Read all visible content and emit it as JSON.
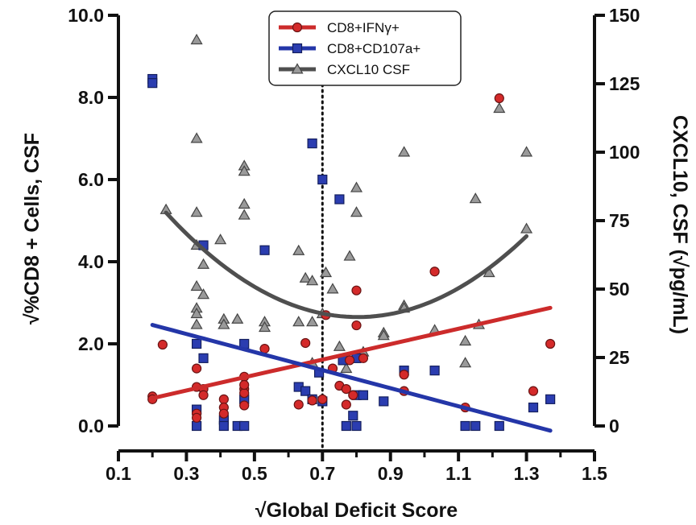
{
  "chart_data": {
    "type": "scatter",
    "xlabel": "√Global Deficit Score",
    "ylabel_left": "√%CD8 + Cells, CSF",
    "ylabel_right": "CXCL10, CSF (√pg/mL)",
    "xlim": [
      0.1,
      1.5
    ],
    "ylim_left": [
      0,
      10
    ],
    "ylim_right": [
      0,
      150
    ],
    "x_ticks": [
      "0.1",
      "0.3",
      "0.5",
      "0.7",
      "0.9",
      "1.1",
      "1.3",
      "1.5"
    ],
    "y_left_ticks": [
      "0.0",
      "2.0",
      "4.0",
      "6.0",
      "8.0",
      "10.0"
    ],
    "y_right_ticks": [
      "0",
      "25",
      "50",
      "75",
      "100",
      "125",
      "150"
    ],
    "threshold_x": 0.7,
    "legend_position": "top-center",
    "series": [
      {
        "name": "CD8+IFNγ+",
        "axis": "left",
        "marker": "circle",
        "color": "#d42a2a",
        "points": [
          [
            0.2,
            0.72
          ],
          [
            0.2,
            0.65
          ],
          [
            0.23,
            1.98
          ],
          [
            0.33,
            0.95
          ],
          [
            0.33,
            0.3
          ],
          [
            0.33,
            0.2
          ],
          [
            0.33,
            1.4
          ],
          [
            0.35,
            0.9
          ],
          [
            0.35,
            0.75
          ],
          [
            0.41,
            0.65
          ],
          [
            0.41,
            0.45
          ],
          [
            0.41,
            0.3
          ],
          [
            0.47,
            0.9
          ],
          [
            0.47,
            0.8
          ],
          [
            0.47,
            1.2
          ],
          [
            0.47,
            1.0
          ],
          [
            0.47,
            0.5
          ],
          [
            0.53,
            1.88
          ],
          [
            0.63,
            0.52
          ],
          [
            0.65,
            2.02
          ],
          [
            0.67,
            0.62
          ],
          [
            0.7,
            0.65
          ],
          [
            0.71,
            2.7
          ],
          [
            0.73,
            1.4
          ],
          [
            0.75,
            0.98
          ],
          [
            0.77,
            0.9
          ],
          [
            0.77,
            0.52
          ],
          [
            0.78,
            1.6
          ],
          [
            0.79,
            0.75
          ],
          [
            0.8,
            3.3
          ],
          [
            0.8,
            2.45
          ],
          [
            0.82,
            1.65
          ],
          [
            0.94,
            1.25
          ],
          [
            0.94,
            0.85
          ],
          [
            1.03,
            3.76
          ],
          [
            1.12,
            0.45
          ],
          [
            1.22,
            7.98
          ],
          [
            1.32,
            0.85
          ],
          [
            1.37,
            2.0
          ]
        ]
      },
      {
        "name": "CD8+CD107a+",
        "axis": "left",
        "marker": "square",
        "color": "#2b3db0",
        "points": [
          [
            0.2,
            8.45
          ],
          [
            0.2,
            8.35
          ],
          [
            0.33,
            2.0
          ],
          [
            0.33,
            0.4
          ],
          [
            0.33,
            0.0
          ],
          [
            0.35,
            1.65
          ],
          [
            0.35,
            4.4
          ],
          [
            0.41,
            0.15
          ],
          [
            0.41,
            0.0
          ],
          [
            0.45,
            0.0
          ],
          [
            0.47,
            2.0
          ],
          [
            0.47,
            0.65
          ],
          [
            0.47,
            0.0
          ],
          [
            0.53,
            4.28
          ],
          [
            0.63,
            0.95
          ],
          [
            0.65,
            0.85
          ],
          [
            0.67,
            6.88
          ],
          [
            0.67,
            0.65
          ],
          [
            0.69,
            1.3
          ],
          [
            0.7,
            6.0
          ],
          [
            0.7,
            0.6
          ],
          [
            0.75,
            5.52
          ],
          [
            0.76,
            1.6
          ],
          [
            0.77,
            0.0
          ],
          [
            0.79,
            0.25
          ],
          [
            0.8,
            0.75
          ],
          [
            0.8,
            0.0
          ],
          [
            0.8,
            1.65
          ],
          [
            0.82,
            0.75
          ],
          [
            0.88,
            0.6
          ],
          [
            0.94,
            1.35
          ],
          [
            1.03,
            1.35
          ],
          [
            1.12,
            0.0
          ],
          [
            1.15,
            0.0
          ],
          [
            1.22,
            0.0
          ],
          [
            1.32,
            0.45
          ],
          [
            1.37,
            0.65
          ]
        ]
      },
      {
        "name": "CXCL10 CSF",
        "axis": "right",
        "marker": "triangle",
        "color": "#9a9a9a",
        "points": [
          [
            0.24,
            79
          ],
          [
            0.33,
            141
          ],
          [
            0.33,
            105
          ],
          [
            0.33,
            78
          ],
          [
            0.33,
            66
          ],
          [
            0.33,
            51
          ],
          [
            0.33,
            43
          ],
          [
            0.33,
            41
          ],
          [
            0.33,
            37
          ],
          [
            0.35,
            59
          ],
          [
            0.35,
            48
          ],
          [
            0.4,
            68
          ],
          [
            0.41,
            39
          ],
          [
            0.41,
            37
          ],
          [
            0.45,
            39
          ],
          [
            0.47,
            95
          ],
          [
            0.47,
            93
          ],
          [
            0.47,
            81
          ],
          [
            0.47,
            77
          ],
          [
            0.53,
            38
          ],
          [
            0.53,
            36
          ],
          [
            0.63,
            64
          ],
          [
            0.63,
            38
          ],
          [
            0.65,
            54
          ],
          [
            0.67,
            53
          ],
          [
            0.67,
            38
          ],
          [
            0.67,
            23
          ],
          [
            0.7,
            41
          ],
          [
            0.71,
            56
          ],
          [
            0.73,
            50
          ],
          [
            0.75,
            29
          ],
          [
            0.77,
            21
          ],
          [
            0.78,
            62
          ],
          [
            0.8,
            87
          ],
          [
            0.8,
            78
          ],
          [
            0.82,
            27
          ],
          [
            0.88,
            34
          ],
          [
            0.88,
            33
          ],
          [
            0.94,
            100
          ],
          [
            0.94,
            44
          ],
          [
            0.94,
            43
          ],
          [
            1.03,
            35
          ],
          [
            1.12,
            31
          ],
          [
            1.12,
            23
          ],
          [
            1.15,
            83
          ],
          [
            1.16,
            37
          ],
          [
            1.19,
            56
          ],
          [
            1.22,
            116
          ],
          [
            1.3,
            100
          ],
          [
            1.3,
            72
          ]
        ]
      }
    ],
    "fit_lines": [
      {
        "series": "CD8+IFNγ+",
        "axis": "left",
        "kind": "linear",
        "color": "#cc2b2b",
        "x_range": [
          0.2,
          1.37
        ],
        "coef": [
          0.3,
          1.88
        ]
      },
      {
        "series": "CD8+CD107a+",
        "axis": "left",
        "kind": "linear",
        "color": "#2436a8",
        "x_range": [
          0.2,
          1.37
        ],
        "coef": [
          2.9,
          -2.2
        ]
      },
      {
        "series": "CXCL10 CSF",
        "axis": "right",
        "kind": "quadratic",
        "color": "#4f4f4f",
        "x_range": [
          0.24,
          1.3
        ],
        "coef": [
          117.3,
          -192.9,
          120.0
        ]
      }
    ]
  }
}
